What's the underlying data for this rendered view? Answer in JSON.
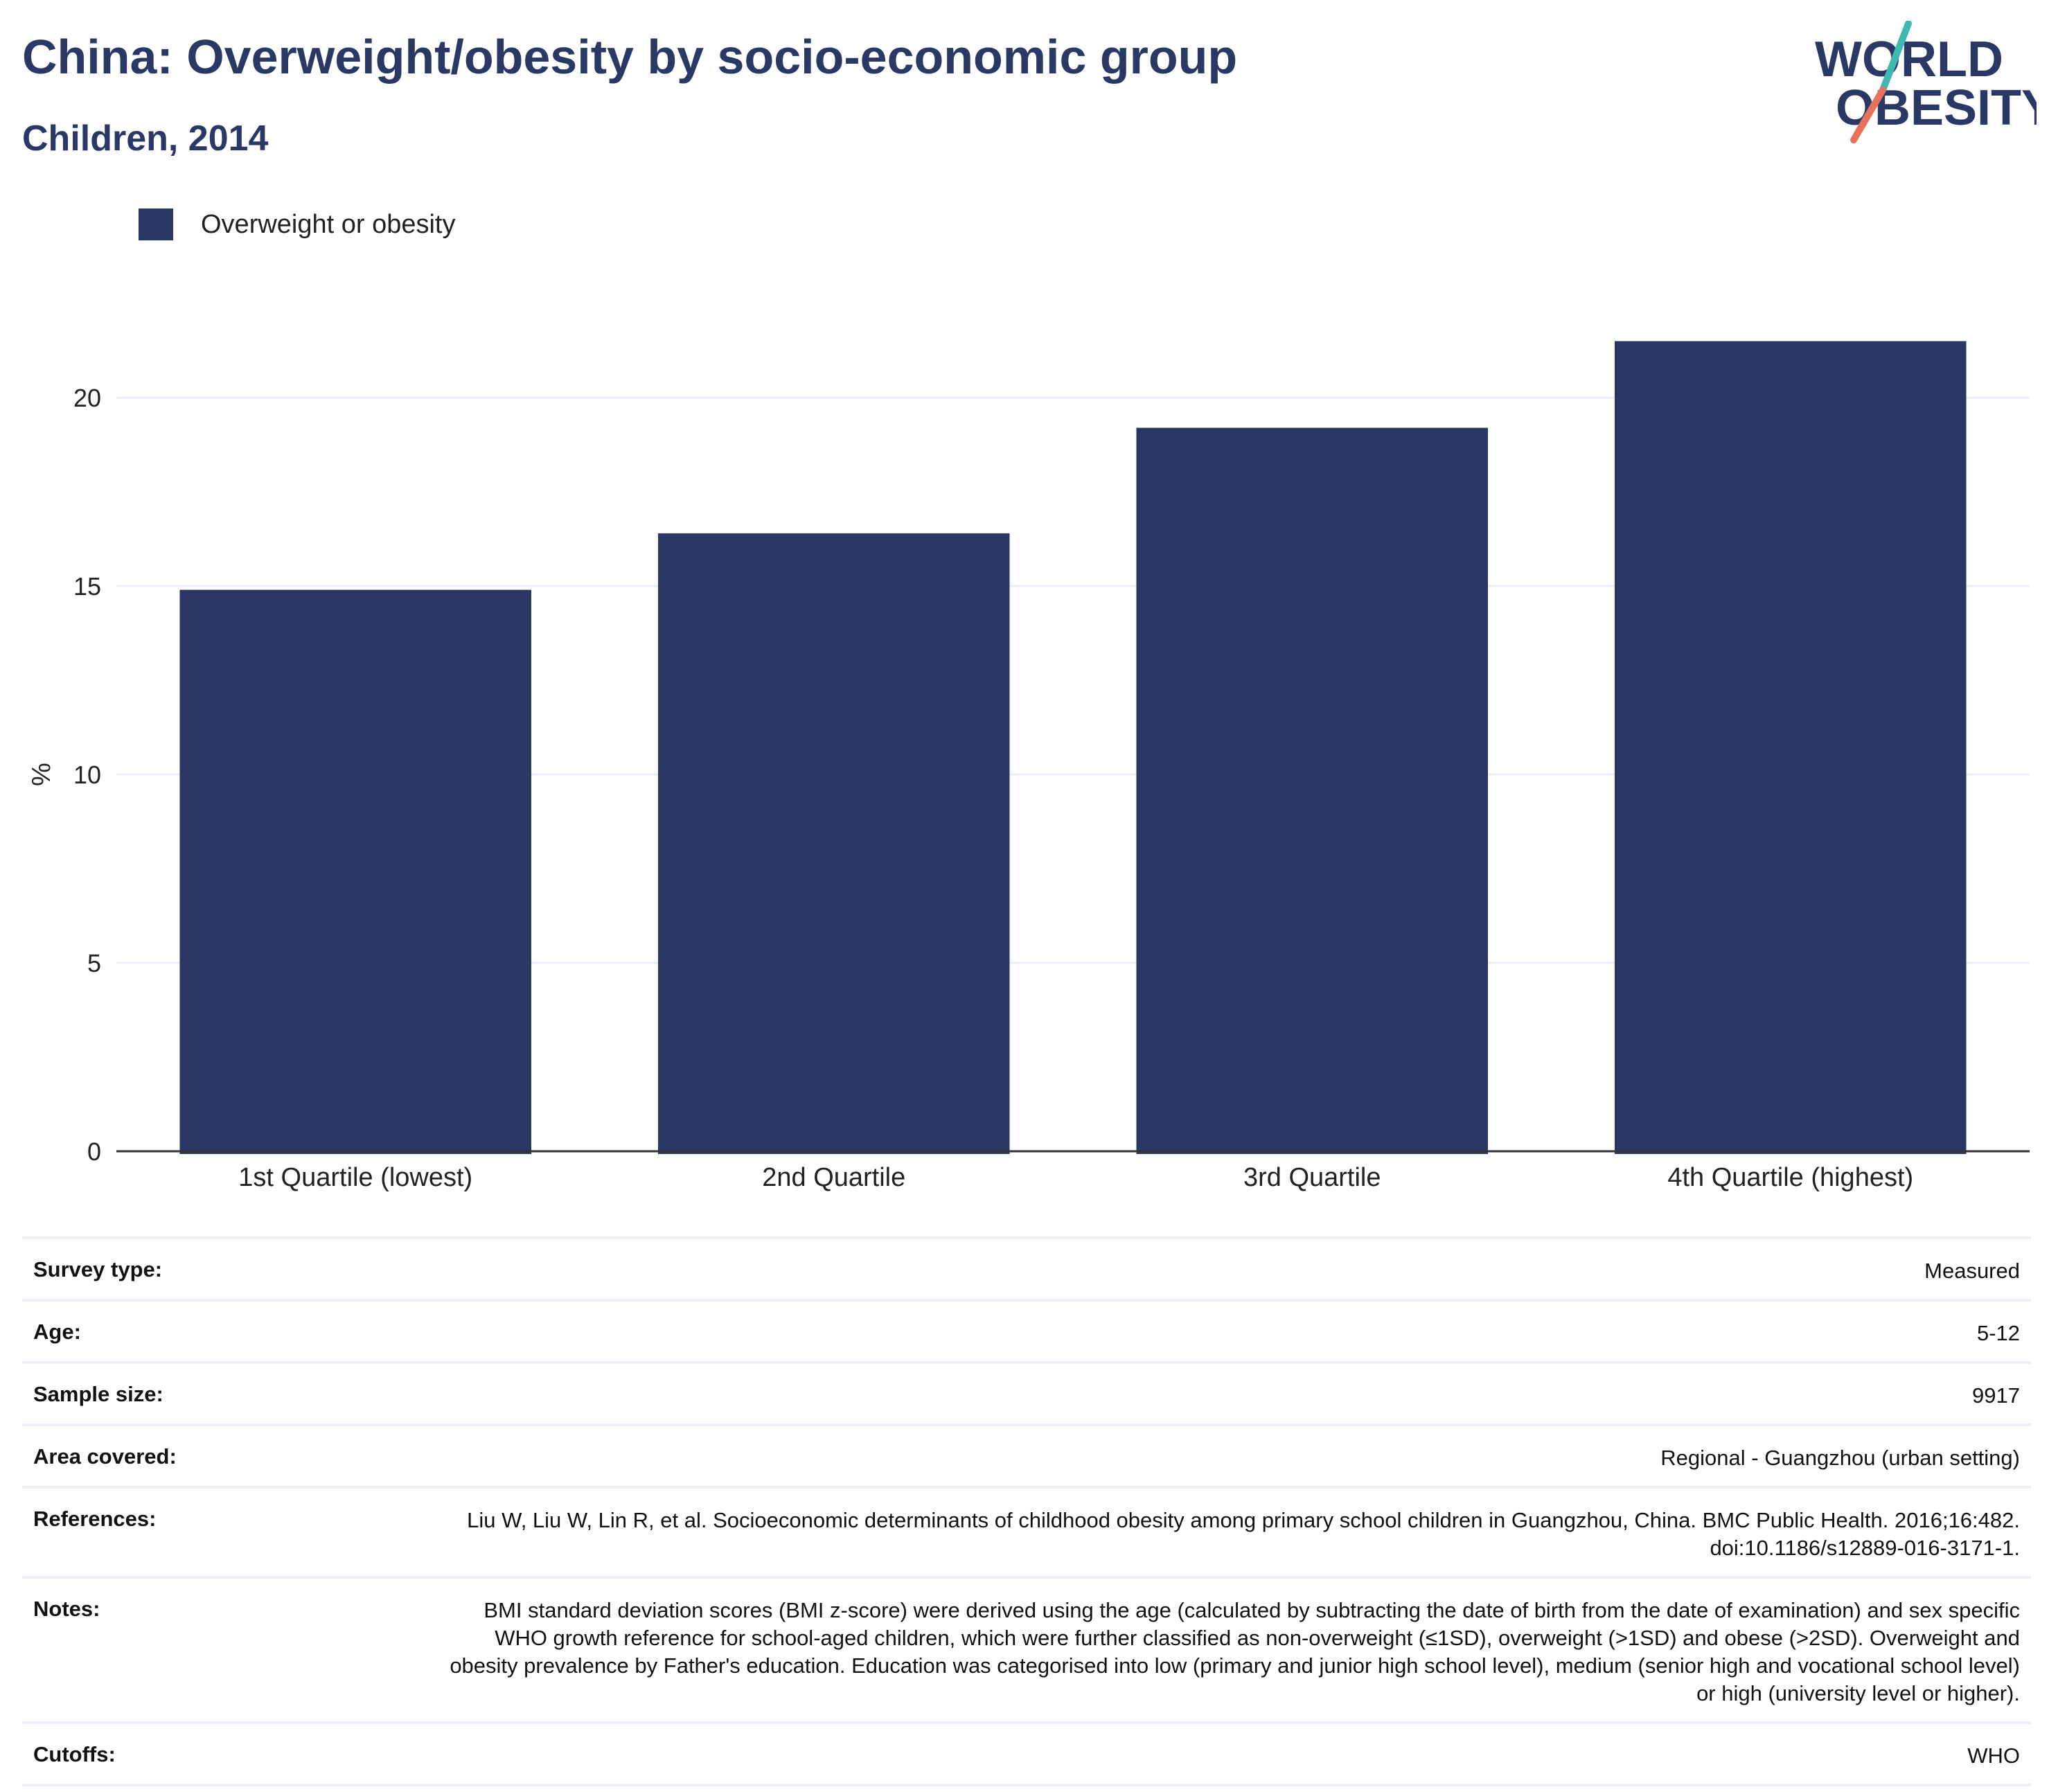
{
  "header": {
    "title": "China: Overweight/obesity by socio-economic group",
    "subtitle": "Children, 2014"
  },
  "logo": {
    "line1": "WORLD",
    "line2": "OBESITY",
    "colors": {
      "text": "#2a3866",
      "teal": "#3fb8b0",
      "coral": "#e8735a"
    }
  },
  "chart_data": {
    "type": "bar",
    "categories": [
      "1st Quartile (lowest)",
      "2nd Quartile",
      "3rd Quartile",
      "4th Quartile (highest)"
    ],
    "series": [
      {
        "name": "Overweight or obesity",
        "values": [
          14.9,
          16.4,
          19.2,
          21.5
        ],
        "color": "#2a3764"
      }
    ],
    "ylabel": "%",
    "ylim": [
      0,
      23.2
    ],
    "yticks": [
      0,
      5,
      10,
      15,
      20
    ],
    "grid": true,
    "legend_position": "top-left"
  },
  "metadata": [
    {
      "key": "Survey type:",
      "value": "Measured"
    },
    {
      "key": "Age:",
      "value": "5-12"
    },
    {
      "key": "Sample size:",
      "value": "9917"
    },
    {
      "key": "Area covered:",
      "value": "Regional - Guangzhou (urban setting)"
    },
    {
      "key": "References:",
      "value": "Liu W, Liu W, Lin R, et al. Socioeconomic determinants of childhood obesity among primary school children in Guangzhou, China. BMC Public Health. 2016;16:482. doi:10.1186/s12889-016-3171-1."
    },
    {
      "key": "Notes:",
      "value": "BMI standard deviation scores (BMI z-score) were derived using the age (calculated by subtracting the date of birth from the date of examination) and sex specific WHO growth reference for school-aged children, which were further classified as non-overweight (≤1SD), overweight (>1SD) and obese (>2SD). Overweight and obesity prevalence by Father's education. Education was categorised into low (primary and junior high school level), medium (senior high and vocational school level) or high (university level or higher)."
    },
    {
      "key": "Cutoffs:",
      "value": "WHO"
    }
  ]
}
